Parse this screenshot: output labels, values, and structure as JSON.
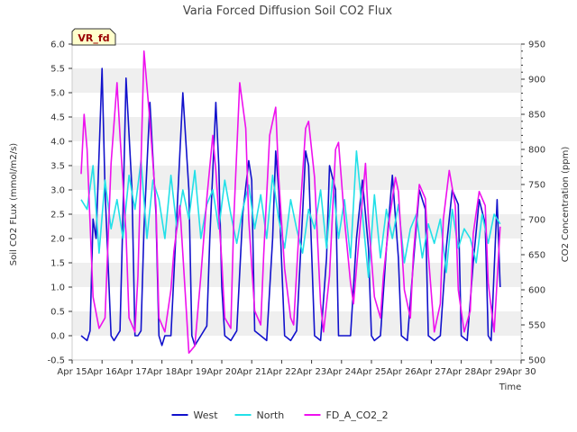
{
  "chart_data": {
    "type": "line",
    "title": "Varia Forced Diffusion Soil CO2 Flux",
    "xlabel": "Time",
    "ylabel": "Soil CO2 FLux (mmol/m2/s)",
    "y2label": "CO2 Concentration (ppm)",
    "badge": "VR_fd",
    "x_ticks": [
      "Apr 15",
      "Apr 16",
      "Apr 17",
      "Apr 18",
      "Apr 19",
      "Apr 20",
      "Apr 21",
      "Apr 22",
      "Apr 23",
      "Apr 24",
      "Apr 25",
      "Apr 26",
      "Apr 27",
      "Apr 28",
      "Apr 29",
      "Apr 30"
    ],
    "xlim": [
      15,
      30
    ],
    "ylim": [
      -0.5,
      6.0
    ],
    "y_ticks": [
      "-0.5",
      "0.0",
      "0.5",
      "1.0",
      "1.5",
      "2.0",
      "2.5",
      "3.0",
      "3.5",
      "4.0",
      "4.5",
      "5.0",
      "5.5",
      "6.0"
    ],
    "y2lim": [
      500,
      950
    ],
    "y2_ticks": [
      "500",
      "550",
      "600",
      "650",
      "700",
      "750",
      "800",
      "850",
      "900",
      "950"
    ],
    "grid": "horizontal bands",
    "legend_position": "bottom-center",
    "series": [
      {
        "name": "West",
        "axis": "left",
        "color": "#1111cc",
        "x": [
          15.3,
          15.5,
          15.6,
          15.7,
          15.8,
          16.0,
          16.1,
          16.3,
          16.4,
          16.6,
          16.7,
          16.8,
          17.0,
          17.1,
          17.2,
          17.3,
          17.4,
          17.6,
          17.8,
          17.9,
          18.0,
          18.1,
          18.3,
          18.5,
          18.7,
          18.9,
          19.0,
          19.1,
          19.3,
          19.5,
          19.6,
          19.8,
          19.9,
          20.0,
          20.1,
          20.3,
          20.5,
          20.7,
          20.9,
          21.0,
          21.1,
          21.3,
          21.5,
          21.7,
          21.8,
          21.9,
          22.1,
          22.3,
          22.5,
          22.7,
          22.8,
          22.9,
          23.1,
          23.3,
          23.5,
          23.6,
          23.8,
          23.9,
          24.1,
          24.3,
          24.5,
          24.7,
          24.9,
          25.0,
          25.1,
          25.3,
          25.5,
          25.7,
          25.9,
          26.0,
          26.2,
          26.4,
          26.6,
          26.8,
          26.9,
          27.1,
          27.3,
          27.5,
          27.7,
          27.9,
          28.0,
          28.2,
          28.4,
          28.6,
          28.8,
          28.9,
          29.0,
          29.2,
          29.3
        ],
        "y": [
          0.0,
          -0.1,
          0.1,
          2.4,
          2.0,
          5.5,
          3.0,
          0.0,
          -0.1,
          0.1,
          2.5,
          5.3,
          3.0,
          0.0,
          0.0,
          0.1,
          2.2,
          4.8,
          2.5,
          0.0,
          -0.2,
          0.0,
          0.0,
          2.5,
          5.0,
          3.0,
          0.0,
          -0.2,
          0.0,
          0.2,
          2.0,
          4.8,
          3.5,
          1.0,
          0.0,
          -0.1,
          0.1,
          2.5,
          3.6,
          3.2,
          0.1,
          0.0,
          -0.1,
          2.0,
          3.8,
          3.0,
          0.0,
          -0.1,
          0.1,
          2.5,
          3.8,
          3.5,
          0.0,
          -0.1,
          1.6,
          3.5,
          3.0,
          0.0,
          0.0,
          0.0,
          2.0,
          3.2,
          1.8,
          0.0,
          -0.1,
          0.0,
          1.8,
          3.3,
          1.6,
          0.0,
          -0.1,
          1.5,
          3.0,
          2.6,
          0.0,
          -0.1,
          0.0,
          1.8,
          3.0,
          2.7,
          0.0,
          -0.1,
          1.5,
          2.8,
          2.3,
          0.0,
          -0.1,
          2.8,
          1.0
        ]
      },
      {
        "name": "North",
        "axis": "left",
        "color": "#22e0e8",
        "x": [
          15.3,
          15.5,
          15.7,
          15.9,
          16.1,
          16.3,
          16.5,
          16.7,
          16.9,
          17.1,
          17.3,
          17.5,
          17.7,
          17.9,
          18.1,
          18.3,
          18.5,
          18.7,
          18.9,
          19.1,
          19.3,
          19.5,
          19.7,
          19.9,
          20.1,
          20.3,
          20.5,
          20.7,
          20.9,
          21.1,
          21.3,
          21.5,
          21.7,
          21.9,
          22.1,
          22.3,
          22.5,
          22.7,
          22.9,
          23.1,
          23.3,
          23.5,
          23.7,
          23.9,
          24.1,
          24.3,
          24.5,
          24.7,
          24.9,
          25.1,
          25.3,
          25.5,
          25.7,
          25.9,
          26.1,
          26.3,
          26.5,
          26.7,
          26.9,
          27.1,
          27.3,
          27.5,
          27.7,
          27.9,
          28.1,
          28.3,
          28.5,
          28.7,
          28.9,
          29.1,
          29.3
        ],
        "y": [
          2.8,
          2.6,
          3.5,
          1.7,
          3.2,
          2.2,
          2.8,
          2.0,
          3.3,
          2.6,
          3.6,
          2.0,
          3.2,
          2.8,
          2.0,
          3.3,
          2.2,
          3.0,
          2.4,
          3.4,
          2.0,
          2.7,
          3.0,
          2.2,
          3.2,
          2.5,
          1.9,
          2.6,
          3.1,
          2.2,
          2.9,
          2.0,
          3.3,
          2.4,
          1.8,
          2.8,
          2.2,
          1.7,
          2.6,
          2.2,
          3.0,
          1.8,
          3.2,
          2.0,
          2.8,
          1.6,
          3.8,
          2.5,
          1.2,
          2.9,
          1.6,
          2.6,
          2.0,
          2.7,
          1.5,
          2.2,
          2.5,
          1.6,
          2.3,
          1.9,
          2.4,
          1.3,
          2.6,
          1.8,
          2.2,
          2.0,
          1.5,
          2.5,
          1.9,
          2.5,
          2.3
        ]
      },
      {
        "name": "FD_A_CO2_2",
        "axis": "right",
        "color": "#ee11ee",
        "x": [
          15.3,
          15.4,
          15.5,
          15.7,
          15.9,
          16.1,
          16.3,
          16.5,
          16.6,
          16.8,
          16.9,
          17.1,
          17.2,
          17.3,
          17.4,
          17.6,
          17.8,
          17.9,
          18.1,
          18.3,
          18.4,
          18.6,
          18.8,
          18.9,
          19.1,
          19.3,
          19.5,
          19.7,
          19.8,
          20.0,
          20.1,
          20.3,
          20.4,
          20.6,
          20.8,
          20.9,
          21.1,
          21.3,
          21.4,
          21.6,
          21.8,
          21.9,
          22.1,
          22.3,
          22.4,
          22.6,
          22.8,
          22.9,
          23.1,
          23.3,
          23.4,
          23.6,
          23.8,
          23.9,
          24.1,
          24.3,
          24.4,
          24.6,
          24.8,
          24.9,
          25.1,
          25.3,
          25.4,
          25.6,
          25.8,
          25.9,
          26.1,
          26.3,
          26.4,
          26.6,
          26.8,
          26.9,
          27.1,
          27.3,
          27.4,
          27.6,
          27.8,
          27.9,
          28.1,
          28.3,
          28.4,
          28.6,
          28.8,
          28.9,
          29.1,
          29.3
        ],
        "y": [
          765,
          850,
          800,
          590,
          545,
          560,
          780,
          895,
          820,
          680,
          560,
          540,
          620,
          780,
          940,
          840,
          720,
          560,
          540,
          600,
          655,
          720,
          580,
          510,
          520,
          620,
          730,
          820,
          770,
          640,
          560,
          545,
          700,
          895,
          830,
          700,
          570,
          550,
          650,
          820,
          860,
          760,
          630,
          560,
          550,
          700,
          830,
          840,
          760,
          580,
          540,
          620,
          800,
          810,
          700,
          610,
          580,
          680,
          780,
          700,
          590,
          560,
          620,
          700,
          760,
          740,
          600,
          560,
          650,
          750,
          730,
          650,
          540,
          580,
          700,
          770,
          720,
          600,
          540,
          570,
          680,
          740,
          720,
          610,
          540,
          690
        ]
      }
    ]
  }
}
